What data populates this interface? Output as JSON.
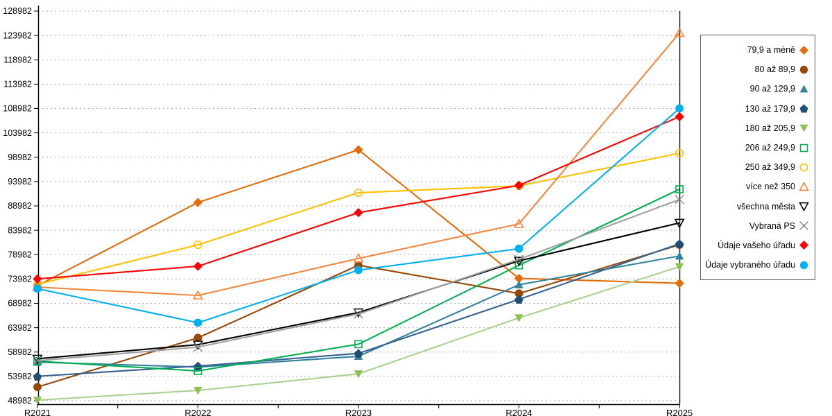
{
  "chart_data": {
    "type": "line",
    "title": "",
    "xlabel": "",
    "ylabel": "",
    "categories": [
      "R2021",
      "R2022",
      "R2023",
      "R2024",
      "R2025"
    ],
    "ylim": [
      48982,
      128982
    ],
    "ytick_step": 5000,
    "ytick_labels": [
      "48982",
      "53982",
      "58982",
      "63982",
      "68982",
      "73982",
      "78982",
      "83982",
      "88982",
      "93982",
      "98982",
      "103982",
      "108982",
      "113982",
      "118982",
      "123982",
      "128982"
    ],
    "grid": "horizontal-dashed",
    "legend_position": "right",
    "series": [
      {
        "name": "79,9 a méně",
        "color": "#E36C09",
        "marker": "diamond",
        "values": [
          72600,
          89700,
          100500,
          74100,
          73100
        ]
      },
      {
        "name": "80 až 89,9",
        "color": "#974806",
        "marker": "circle",
        "values": [
          51800,
          61900,
          76800,
          71000,
          81000
        ]
      },
      {
        "name": "90 až 129,9",
        "color": "#31849B",
        "marker": "triangle",
        "values": [
          56900,
          55900,
          58100,
          72800,
          78700
        ]
      },
      {
        "name": "130 až 179,9",
        "color": "#1F4E79",
        "marker": "pentagon",
        "line_color": "#34618F",
        "values": [
          54000,
          56100,
          58700,
          69800,
          81200
        ]
      },
      {
        "name": "180 až 205,9",
        "color": "#8EC152",
        "marker": "triangle-down",
        "line_color": "#A9D18E",
        "values": [
          49100,
          51100,
          54500,
          66000,
          76500
        ]
      },
      {
        "name": "206 až 249,9",
        "color": "#00B050",
        "marker": "square-open",
        "values": [
          57100,
          55100,
          60600,
          76800,
          92400
        ]
      },
      {
        "name": "250 až 349,9",
        "color": "#FFC000",
        "marker": "circle-open",
        "values": [
          72900,
          81000,
          91700,
          93100,
          99800
        ]
      },
      {
        "name": "více než 350",
        "color": "#F5873D",
        "marker": "triangle-open",
        "values": [
          72300,
          70600,
          78200,
          85300,
          124500
        ]
      },
      {
        "name": "všechna města",
        "color": "#000000",
        "marker": "triangle-down-open",
        "values": [
          57600,
          60500,
          67100,
          77700,
          85500
        ]
      },
      {
        "name": "Vybraná PS",
        "color": "#7F7F7F",
        "marker": "x",
        "line_color": "#A0A0A0",
        "values": [
          57200,
          60000,
          66800,
          78000,
          90300
        ]
      },
      {
        "name": "Údaje vašeho úřadu",
        "color": "#FF0000",
        "marker": "diamond",
        "values": [
          74000,
          76600,
          87600,
          93200,
          107300
        ]
      },
      {
        "name": "Údaje vybraného úřadu",
        "color": "#00B0F0",
        "marker": "circle",
        "values": [
          72000,
          65000,
          75800,
          80200,
          109000
        ]
      }
    ],
    "axis_color": "#000000",
    "gridline_color": "#ADADAD"
  }
}
